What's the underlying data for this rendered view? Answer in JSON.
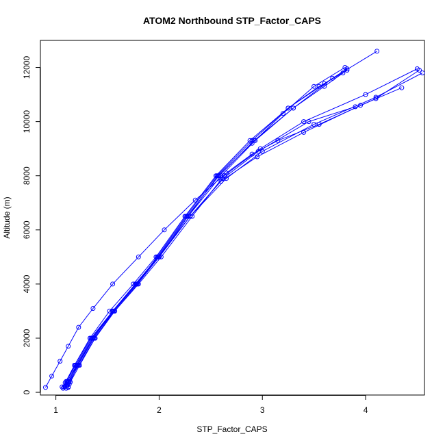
{
  "chart_data": {
    "type": "line",
    "title": "ATOM2 Northbound STP_Factor_CAPS",
    "xlabel": "STP_Factor_CAPS",
    "ylabel": "Altitude (m)",
    "xlim": [
      0.85,
      4.57
    ],
    "ylim": [
      -100,
      13000
    ],
    "xticks": [
      1,
      2,
      3,
      4
    ],
    "yticks": [
      0,
      2000,
      4000,
      6000,
      8000,
      10000,
      12000
    ],
    "grid": false,
    "legend": "none",
    "markers": "open-circle",
    "color": "#0000ff",
    "series": [
      {
        "x": [
          1.12,
          1.13,
          1.21,
          1.37,
          1.57,
          1.79,
          2.0,
          2.28,
          2.6,
          2.93,
          3.3,
          3.6,
          3.82
        ],
        "y": [
          180,
          300,
          1000,
          2000,
          3000,
          4000,
          5000,
          6500,
          8000,
          9300,
          10500,
          11300,
          11900
        ]
      },
      {
        "x": [
          1.08,
          1.1,
          1.18,
          1.33,
          1.52,
          1.75,
          1.97,
          2.25,
          2.55,
          2.88,
          3.25,
          3.55,
          3.78
        ],
        "y": [
          200,
          400,
          1000,
          2000,
          3000,
          4000,
          5000,
          6500,
          8000,
          9300,
          10500,
          11300,
          11800
        ]
      },
      {
        "x": [
          1.1,
          1.12,
          1.2,
          1.36,
          1.55,
          1.77,
          1.99,
          2.27,
          2.58,
          2.92,
          3.3,
          3.68,
          4.11
        ],
        "y": [
          150,
          350,
          1000,
          2000,
          3000,
          4000,
          5000,
          6500,
          8000,
          9300,
          10500,
          11600,
          12600
        ]
      },
      {
        "x": [
          1.11,
          1.13,
          1.22,
          1.38,
          1.56,
          1.78,
          1.98,
          2.26,
          2.56,
          2.9,
          3.25,
          3.6,
          3.82
        ],
        "y": [
          250,
          400,
          1000,
          2000,
          3000,
          4000,
          5000,
          6500,
          8000,
          9300,
          10500,
          11400,
          11950
        ]
      },
      {
        "x": [
          0.9,
          0.96,
          1.04,
          1.12,
          1.22,
          1.36,
          1.55,
          1.8,
          2.05,
          2.35,
          2.65,
          2.9,
          3.15,
          3.55,
          4.1,
          4.52
        ],
        "y": [
          180,
          600,
          1150,
          1700,
          2400,
          3100,
          4000,
          5000,
          6000,
          7100,
          8100,
          8800,
          9300,
          9900,
          10850,
          11900
        ]
      },
      {
        "x": [
          1.06,
          1.1,
          1.19,
          1.35,
          1.55,
          1.78,
          2.0,
          2.3,
          2.6,
          2.95,
          3.4,
          3.95,
          4.35
        ],
        "y": [
          200,
          400,
          1000,
          2000,
          3000,
          4000,
          5000,
          6500,
          7800,
          8700,
          9600,
          10600,
          11250
        ]
      },
      {
        "x": [
          1.09,
          1.11,
          1.2,
          1.36,
          1.56,
          1.78,
          2.0,
          2.3,
          2.65,
          3.0,
          3.5,
          4.1,
          4.55
        ],
        "y": [
          220,
          400,
          1000,
          2000,
          3000,
          4000,
          5000,
          6500,
          7900,
          8900,
          9900,
          10900,
          11800
        ]
      },
      {
        "x": [
          1.07,
          1.09,
          1.18,
          1.34,
          1.55,
          1.77,
          1.99,
          2.3,
          2.62,
          2.96,
          3.45,
          3.9
        ],
        "y": [
          150,
          350,
          1000,
          2000,
          3000,
          4000,
          5000,
          6500,
          7900,
          8900,
          10000,
          10550
        ]
      },
      {
        "x": [
          1.12,
          1.14,
          1.23,
          1.38,
          1.57,
          1.8,
          2.02,
          2.32,
          2.63,
          2.98,
          3.4,
          4.0,
          4.5
        ],
        "y": [
          200,
          380,
          1000,
          2000,
          3000,
          4000,
          5000,
          6500,
          8000,
          9000,
          10000,
          11000,
          11950
        ]
      },
      {
        "x": [
          1.1,
          1.12,
          1.21,
          1.36,
          1.55,
          1.78,
          2.0,
          2.28,
          2.57,
          2.9,
          3.2,
          3.5,
          3.8
        ],
        "y": [
          250,
          400,
          1000,
          2000,
          3000,
          4000,
          5000,
          6500,
          8000,
          9200,
          10300,
          11300,
          12000
        ]
      }
    ]
  }
}
